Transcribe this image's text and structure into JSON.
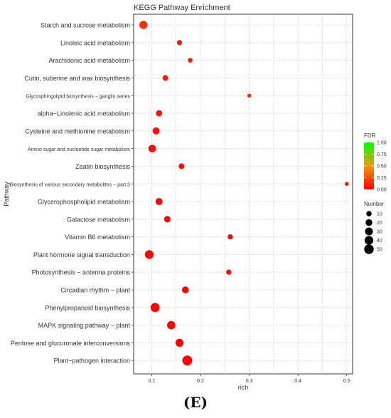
{
  "chart_data": {
    "type": "scatter",
    "title": "KEGG Pathway Enrichment",
    "xlabel": "rich",
    "ylabel": "Pathway",
    "xlim": [
      0.063,
      0.512
    ],
    "x_ticks": [
      "0.1",
      "0.2",
      "0.3",
      "0.4",
      "0.5"
    ],
    "grid": true,
    "legend_position": "right",
    "categories": [
      "Starch and sucrose metabolism",
      "Linoleic acid metabolism",
      "Arachidonic acid metabolism",
      "Cutin, suberine and wax biosynthesis",
      "Glycosphingolipid biosynthesis − ganglio series",
      "alpha−Linolenic acid metabolism",
      "Cysteine and methionine metabolism",
      "Amino sugar and nucleotide sugar metabolism",
      "Zeatin biosynthesis",
      "Biosynthesis of various secondary metabolites − part 3",
      "Glycerophospholipid metabolism",
      "Galactose metabolism",
      "Vitamin B6 metabolism",
      "Plant hormone signal transduction",
      "Photosynthesis − antenna proteins",
      "Circadian rhythm − plant",
      "Phenylpropanoid biosynthesis",
      "MAPK signaling pathway − plant",
      "Pentose and glucuronate interconversions",
      "Plant−pathogen interaction"
    ],
    "points": [
      {
        "pathway": "Starch and sucrose metabolism",
        "rich": 0.083,
        "number": 33,
        "fdr": 0.15
      },
      {
        "pathway": "Linoleic acid metabolism",
        "rich": 0.157,
        "number": 9,
        "fdr": 0.1
      },
      {
        "pathway": "Arachidonic acid metabolism",
        "rich": 0.179,
        "number": 7,
        "fdr": 0.12
      },
      {
        "pathway": "Cutin, suberine and wax biosynthesis",
        "rich": 0.128,
        "number": 12,
        "fdr": 0.1
      },
      {
        "pathway": "Glycosphingolipid biosynthesis − ganglio series",
        "rich": 0.3,
        "number": 3,
        "fdr": 0.12
      },
      {
        "pathway": "alpha−Linolenic acid metabolism",
        "rich": 0.115,
        "number": 16,
        "fdr": 0.07
      },
      {
        "pathway": "Cysteine and methionine metabolism",
        "rich": 0.109,
        "number": 23,
        "fdr": 0.06
      },
      {
        "pathway": "Amino sugar and nucleotide sugar metabolism",
        "rich": 0.101,
        "number": 28,
        "fdr": 0.05
      },
      {
        "pathway": "Zeatin biosynthesis",
        "rich": 0.161,
        "number": 12,
        "fdr": 0.04
      },
      {
        "pathway": "Biosynthesis of various secondary metabolites − part 3",
        "rich": 0.5,
        "number": 3,
        "fdr": 0.04
      },
      {
        "pathway": "Glycerophospholipid metabolism",
        "rich": 0.115,
        "number": 23,
        "fdr": 0.03
      },
      {
        "pathway": "Galactose metabolism",
        "rich": 0.132,
        "number": 18,
        "fdr": 0.03
      },
      {
        "pathway": "Vitamin B6 metabolism",
        "rich": 0.261,
        "number": 9,
        "fdr": 0.02
      },
      {
        "pathway": "Plant hormone signal transduction",
        "rich": 0.095,
        "number": 40,
        "fdr": 0.02
      },
      {
        "pathway": "Photosynthesis − antenna proteins",
        "rich": 0.258,
        "number": 9,
        "fdr": 0.02
      },
      {
        "pathway": "Circadian rhythm − plant",
        "rich": 0.169,
        "number": 20,
        "fdr": 0.01
      },
      {
        "pathway": "Phenylpropanoid biosynthesis",
        "rich": 0.107,
        "number": 45,
        "fdr": 0.01
      },
      {
        "pathway": "MAPK signaling pathway − plant",
        "rich": 0.14,
        "number": 35,
        "fdr": 0.01
      },
      {
        "pathway": "Pentose and glucuronate interconversions",
        "rich": 0.157,
        "number": 32,
        "fdr": 0.01
      },
      {
        "pathway": "Plant−pathogen interaction",
        "rich": 0.173,
        "number": 55,
        "fdr": 0.0
      }
    ],
    "color_legend": {
      "title": "FDR",
      "ticks": [
        "1.00",
        "0.75",
        "0.50",
        "0.25",
        "0.00"
      ],
      "low_color": "#ff0000",
      "high_color": "#00ff00"
    },
    "size_legend": {
      "title": "Number",
      "values": [
        10,
        20,
        30,
        40,
        50
      ]
    }
  },
  "figure": {
    "caption": "(E)"
  }
}
